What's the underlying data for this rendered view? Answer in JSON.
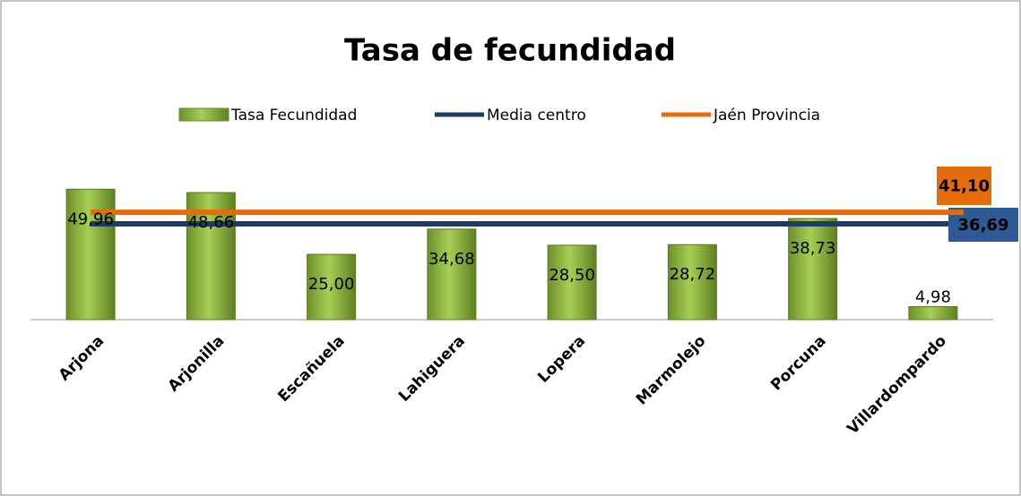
{
  "chart_data": {
    "type": "bar",
    "title": "Tasa de fecundidad",
    "categories": [
      "Arjona",
      "Arjonilla",
      "Escañuela",
      "Lahiguera",
      "Lopera",
      "Marmolejo",
      "Porcuna",
      "Villardompardo"
    ],
    "series": [
      {
        "name": "Tasa Fecundidad",
        "color": "#8cb33c",
        "values": [
          49.96,
          48.66,
          25.0,
          34.68,
          28.5,
          28.72,
          38.73,
          4.98
        ],
        "value_labels": [
          "49,96",
          "48,66",
          "25,00",
          "34,68",
          "28,50",
          "28,72",
          "38,73",
          "4,98"
        ]
      },
      {
        "name": "Media centro",
        "color": "#1f3b63",
        "value": 36.69,
        "value_label": "36,69",
        "label_color": "#2e5b96"
      },
      {
        "name": "Jaén Provincia",
        "color": "#e46c0a",
        "value": 41.1,
        "value_label": "41,10",
        "label_color": "#e46c0a"
      }
    ],
    "ylim": [
      0,
      60
    ]
  }
}
